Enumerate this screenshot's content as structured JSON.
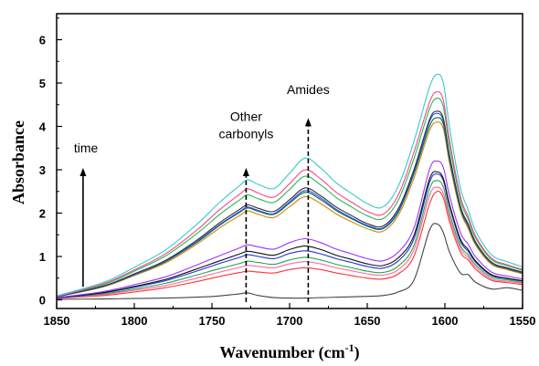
{
  "chart_data": {
    "type": "line",
    "title": "",
    "xlabel": "Wavenumber (cm",
    "xlabel_sup": "-1",
    "xlabel_close": ")",
    "ylabel": "Absorbance",
    "xlim": [
      1850,
      1550
    ],
    "ylim": [
      -0.2,
      6.6
    ],
    "x_reversed": true,
    "grid": false,
    "legend": "none",
    "x_ticks": [
      1850,
      1800,
      1750,
      1700,
      1650,
      1600,
      1550
    ],
    "y_ticks": [
      0,
      1,
      2,
      3,
      4,
      5,
      6
    ],
    "x_tick_labels": [
      "1850",
      "1800",
      "1750",
      "1700",
      "1650",
      "1600",
      "1550"
    ],
    "y_tick_labels": [
      "0",
      "1",
      "2",
      "3",
      "4",
      "5",
      "6"
    ],
    "annotations": [
      {
        "text_lines": [
          "time"
        ],
        "arrow_x": 1833,
        "arrow_from_y": 0.3,
        "arrow_to_y": 3.0,
        "style": "solid",
        "label_y": 3.4
      },
      {
        "text_lines": [
          "Other",
          "carbonyls"
        ],
        "arrow_x": 1728,
        "arrow_from_y": -0.05,
        "arrow_to_y": 3.0,
        "style": "dashed",
        "label_y": 3.75
      },
      {
        "text_lines": [
          "Amides"
        ],
        "arrow_x": 1688,
        "arrow_from_y": -0.05,
        "arrow_to_y": 4.15,
        "style": "dashed",
        "label_y": 4.75
      }
    ],
    "x": [
      1850,
      1820,
      1800,
      1780,
      1760,
      1745,
      1732,
      1727,
      1720,
      1710,
      1700,
      1690,
      1680,
      1670,
      1660,
      1650,
      1640,
      1630,
      1620,
      1610,
      1605,
      1601,
      1597,
      1590,
      1585,
      1580,
      1570,
      1560,
      1550
    ],
    "series": [
      {
        "color": "#444444",
        "values": [
          0.01,
          0.02,
          0.03,
          0.04,
          0.06,
          0.09,
          0.14,
          0.16,
          0.1,
          0.05,
          0.04,
          0.04,
          0.05,
          0.06,
          0.07,
          0.08,
          0.1,
          0.18,
          0.45,
          1.6,
          1.75,
          1.55,
          1.1,
          0.62,
          0.58,
          0.4,
          0.25,
          0.28,
          0.22
        ]
      },
      {
        "color": "#ff3333",
        "values": [
          0.03,
          0.1,
          0.18,
          0.28,
          0.42,
          0.54,
          0.63,
          0.66,
          0.64,
          0.62,
          0.7,
          0.74,
          0.7,
          0.62,
          0.56,
          0.5,
          0.48,
          0.6,
          1.0,
          2.2,
          2.5,
          2.35,
          1.8,
          1.1,
          0.92,
          0.7,
          0.45,
          0.4,
          0.35
        ]
      },
      {
        "color": "#ff66aa",
        "values": [
          0.03,
          0.12,
          0.22,
          0.33,
          0.5,
          0.64,
          0.75,
          0.79,
          0.77,
          0.74,
          0.83,
          0.88,
          0.83,
          0.74,
          0.67,
          0.6,
          0.57,
          0.7,
          1.15,
          2.4,
          2.6,
          2.45,
          1.9,
          1.18,
          0.98,
          0.75,
          0.48,
          0.43,
          0.38
        ]
      },
      {
        "color": "#22aa44",
        "values": [
          0.04,
          0.14,
          0.25,
          0.38,
          0.57,
          0.72,
          0.84,
          0.89,
          0.86,
          0.82,
          0.92,
          0.98,
          0.92,
          0.82,
          0.74,
          0.66,
          0.63,
          0.78,
          1.25,
          2.55,
          2.75,
          2.6,
          2.0,
          1.25,
          1.04,
          0.8,
          0.52,
          0.46,
          0.4
        ]
      },
      {
        "color": "#2233cc",
        "values": [
          0.04,
          0.16,
          0.29,
          0.44,
          0.66,
          0.84,
          0.98,
          1.04,
          1.0,
          0.95,
          1.07,
          1.13,
          1.06,
          0.95,
          0.86,
          0.77,
          0.73,
          0.9,
          1.4,
          2.7,
          2.9,
          2.75,
          2.15,
          1.35,
          1.12,
          0.86,
          0.56,
          0.49,
          0.43
        ]
      },
      {
        "color": "#111111",
        "values": [
          0.05,
          0.17,
          0.31,
          0.47,
          0.71,
          0.9,
          1.06,
          1.12,
          1.08,
          1.03,
          1.16,
          1.24,
          1.16,
          1.03,
          0.93,
          0.83,
          0.79,
          0.97,
          1.48,
          2.78,
          2.95,
          2.8,
          2.2,
          1.4,
          1.16,
          0.89,
          0.58,
          0.5,
          0.44
        ]
      },
      {
        "color": "#9933ff",
        "values": [
          0.05,
          0.19,
          0.35,
          0.53,
          0.8,
          1.02,
          1.2,
          1.27,
          1.22,
          1.17,
          1.32,
          1.41,
          1.32,
          1.17,
          1.06,
          0.95,
          0.9,
          1.1,
          1.65,
          3.0,
          3.2,
          3.05,
          2.4,
          1.55,
          1.28,
          0.98,
          0.64,
          0.55,
          0.48
        ]
      },
      {
        "color": "#cc8800",
        "values": [
          0.07,
          0.3,
          0.56,
          0.85,
          1.28,
          1.66,
          1.95,
          2.05,
          1.97,
          1.9,
          2.15,
          2.38,
          2.22,
          1.98,
          1.8,
          1.64,
          1.58,
          1.95,
          2.8,
          3.9,
          4.1,
          3.95,
          3.15,
          2.05,
          1.65,
          1.25,
          0.82,
          0.7,
          0.6
        ]
      },
      {
        "color": "#006666",
        "values": [
          0.07,
          0.31,
          0.58,
          0.88,
          1.32,
          1.72,
          2.02,
          2.12,
          2.04,
          1.97,
          2.23,
          2.48,
          2.31,
          2.06,
          1.87,
          1.7,
          1.64,
          2.02,
          2.9,
          4.0,
          4.2,
          4.05,
          3.23,
          2.1,
          1.7,
          1.29,
          0.85,
          0.72,
          0.62
        ]
      },
      {
        "color": "#3355dd",
        "values": [
          0.07,
          0.31,
          0.58,
          0.89,
          1.34,
          1.74,
          2.04,
          2.14,
          2.06,
          1.99,
          2.26,
          2.52,
          2.35,
          2.09,
          1.89,
          1.72,
          1.66,
          2.05,
          2.95,
          4.1,
          4.3,
          4.12,
          3.28,
          2.13,
          1.72,
          1.3,
          0.86,
          0.73,
          0.63
        ]
      },
      {
        "color": "#333333",
        "values": [
          0.08,
          0.32,
          0.6,
          0.91,
          1.37,
          1.78,
          2.09,
          2.19,
          2.11,
          2.04,
          2.31,
          2.58,
          2.4,
          2.14,
          1.94,
          1.76,
          1.7,
          2.1,
          3.0,
          4.15,
          4.35,
          4.18,
          3.33,
          2.16,
          1.75,
          1.32,
          0.87,
          0.74,
          0.64
        ]
      },
      {
        "color": "#22bb55",
        "values": [
          0.08,
          0.35,
          0.66,
          1.01,
          1.52,
          1.97,
          2.31,
          2.42,
          2.33,
          2.25,
          2.55,
          2.85,
          2.65,
          2.36,
          2.14,
          1.94,
          1.87,
          2.3,
          3.25,
          4.4,
          4.65,
          4.45,
          3.55,
          2.3,
          1.86,
          1.41,
          0.93,
          0.79,
          0.68
        ]
      },
      {
        "color": "#ff4488",
        "values": [
          0.08,
          0.37,
          0.69,
          1.06,
          1.6,
          2.08,
          2.44,
          2.56,
          2.46,
          2.37,
          2.68,
          3.0,
          2.79,
          2.48,
          2.25,
          2.04,
          1.97,
          2.42,
          3.4,
          4.55,
          4.8,
          4.6,
          3.67,
          2.38,
          1.92,
          1.45,
          0.96,
          0.81,
          0.7
        ]
      },
      {
        "color": "#33cccc",
        "values": [
          0.09,
          0.4,
          0.75,
          1.15,
          1.73,
          2.25,
          2.64,
          2.77,
          2.66,
          2.57,
          2.92,
          3.27,
          3.04,
          2.7,
          2.45,
          2.22,
          2.14,
          2.62,
          3.65,
          4.9,
          5.2,
          5.0,
          3.98,
          2.58,
          2.08,
          1.57,
          1.04,
          0.88,
          0.76
        ]
      }
    ]
  }
}
